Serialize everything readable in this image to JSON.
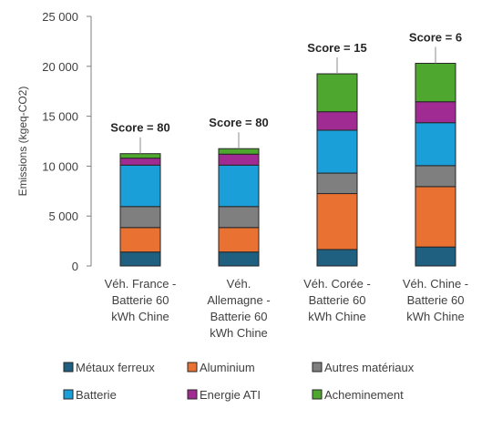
{
  "chart_data": {
    "type": "bar",
    "stacked": true,
    "categories": [
      [
        "Véh. France -",
        "Batterie 60",
        "kWh Chine"
      ],
      [
        "Véh.",
        "Allemagne -",
        "Batterie 60",
        "kWh Chine"
      ],
      [
        "Véh. Corée -",
        "Batterie 60",
        "kWh Chine"
      ],
      [
        "Véh. Chine -",
        "Batterie 60",
        "kWh Chine"
      ]
    ],
    "series": [
      {
        "name": "Métaux ferreux",
        "color": "#1f5f7f",
        "values": [
          1400,
          1400,
          1650,
          1900
        ]
      },
      {
        "name": "Aluminium",
        "color": "#e97132",
        "values": [
          2450,
          2450,
          5600,
          6050
        ]
      },
      {
        "name": "Autres matériaux",
        "color": "#7f7f7f",
        "values": [
          2100,
          2100,
          2050,
          2100
        ]
      },
      {
        "name": "Batterie",
        "color": "#1b9fd8",
        "values": [
          4150,
          4150,
          4300,
          4300
        ]
      },
      {
        "name": "Energie ATI",
        "color": "#a02b93",
        "values": [
          700,
          1100,
          1850,
          2100
        ]
      },
      {
        "name": "Acheminement",
        "color": "#4ea72e",
        "values": [
          450,
          550,
          3800,
          3850
        ]
      }
    ],
    "annotations": [
      "Score = 80",
      "Score = 80",
      "Score = 15",
      "Score = 6"
    ],
    "ylabel": "Emissions (kgeq-CO2)",
    "ylim": [
      0,
      25000
    ],
    "yticks": [
      0,
      5000,
      10000,
      15000,
      20000,
      25000
    ],
    "ytick_labels": [
      "0",
      "5 000",
      "10 000",
      "15 000",
      "20 000",
      "25 000"
    ],
    "legend": "bottom",
    "grid": false
  }
}
